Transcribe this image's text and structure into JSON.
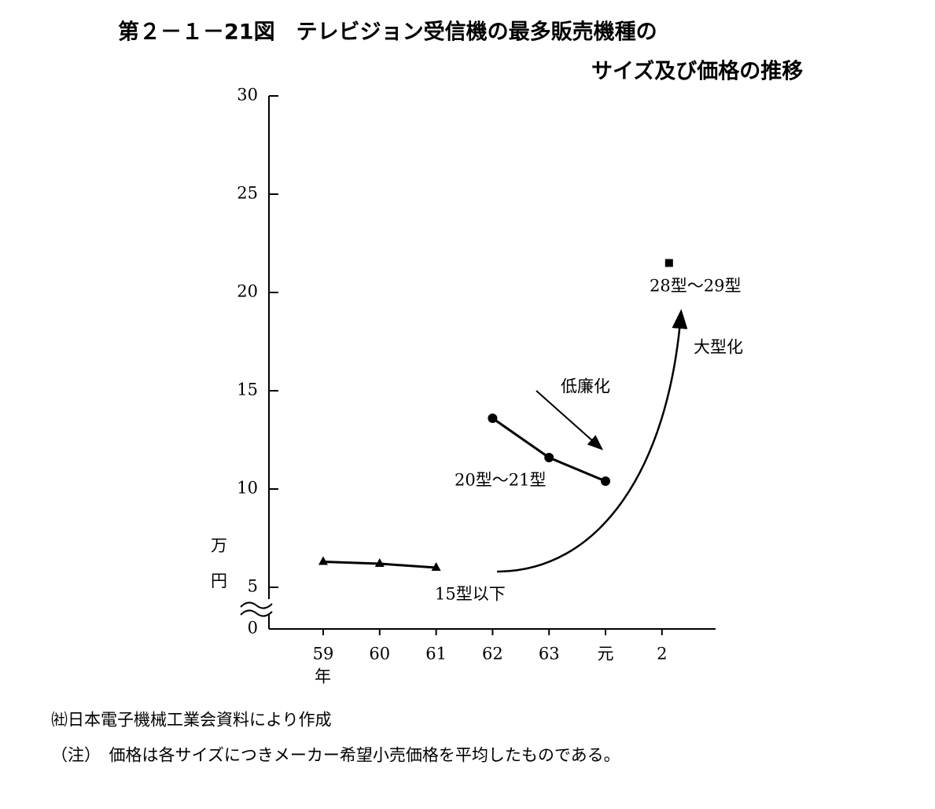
{
  "chart_data": {
    "type": "line",
    "title": "第２－１－21図　テレビジョン受信機の最多販売機種の",
    "subtitle": "サイズ及び価格の推移",
    "y_label": "万円",
    "x_unit": "年",
    "categories": [
      "59",
      "60",
      "61",
      "62",
      "63",
      "元",
      "2"
    ],
    "series": [
      {
        "name": "15型以下",
        "color": "#000000",
        "marker": "triangle",
        "values": [
          6.3,
          6.2,
          6.0,
          null,
          null,
          null,
          null
        ]
      },
      {
        "name": "20型～21型",
        "color": "#000000",
        "marker": "circle",
        "values": [
          null,
          null,
          null,
          13.6,
          11.6,
          10.4,
          null
        ]
      },
      {
        "name": "28型～29型",
        "color": "#000000",
        "marker": "square",
        "values": [
          null,
          null,
          null,
          null,
          null,
          null,
          21.5
        ]
      }
    ],
    "ylim": [
      0,
      30
    ],
    "yticks": [
      0,
      5,
      10,
      15,
      20,
      25,
      30
    ],
    "annotations": [
      "低廉化",
      "大型化"
    ],
    "source": "㈳日本電子機械工業会資料により作成",
    "note": "（注）　価格は各サイズにつきメーカー希望小売価格を平均したものである。"
  }
}
